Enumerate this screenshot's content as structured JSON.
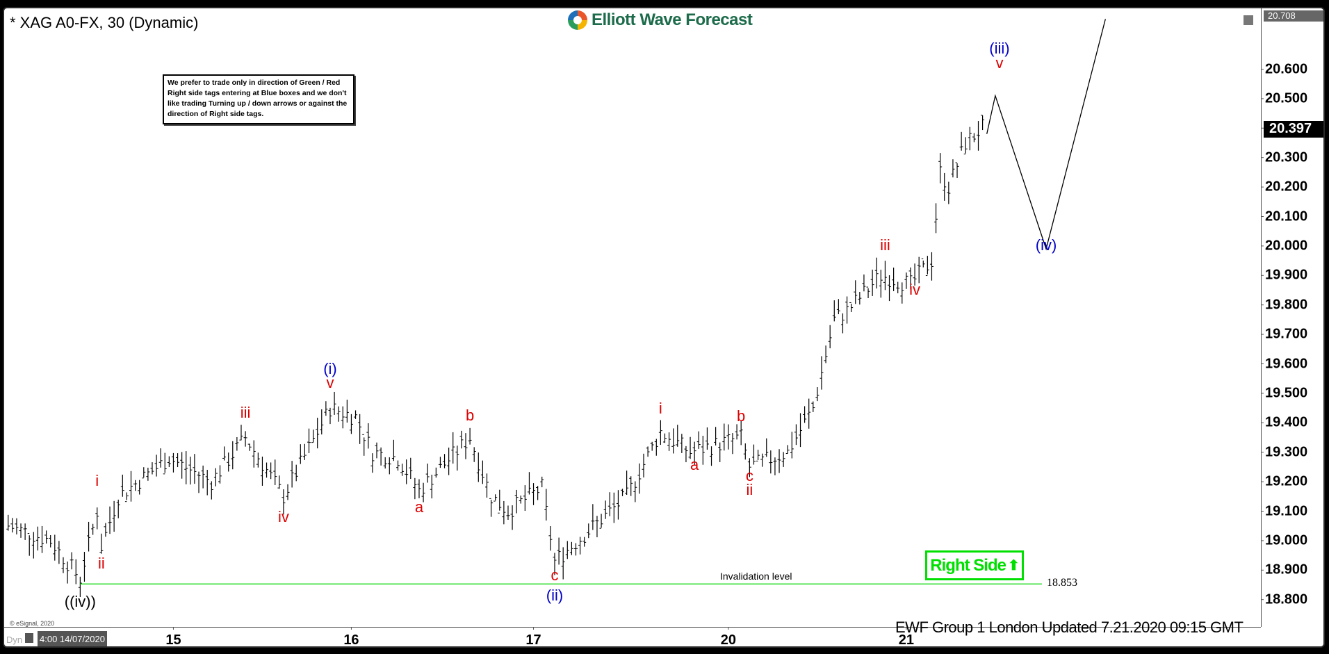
{
  "header": {
    "title": "* XAG A0-FX, 30 (Dynamic)",
    "logo_text": "Elliott Wave Forecast"
  },
  "note": "We prefer to trade only in direction of Green / Red Right side tags entering at Blue boxes and we don't like trading Turning up / down arrows or against the direction of Right side tags.",
  "footer": {
    "dyn": "Dyn",
    "date_tag": "4:00 14/07/2020",
    "copyright": "© eSignal, 2020",
    "updated": "EWF Group 1 London Updated 7.21.2020 09:15 GMT"
  },
  "right_side": {
    "label": "Right Side",
    "color": "#00e000"
  },
  "chart_data": {
    "type": "ohlc-bar",
    "symbol": "XAG A0-FX",
    "interval": "30",
    "ylim": [
      18.75,
      20.75
    ],
    "yticks": [
      "20.600",
      "20.500",
      "20.400",
      "20.300",
      "20.200",
      "20.100",
      "20.000",
      "19.900",
      "19.800",
      "19.700",
      "19.600",
      "19.500",
      "19.400",
      "19.300",
      "19.200",
      "19.100",
      "19.000",
      "18.900",
      "18.800"
    ],
    "ytick_values": [
      20.6,
      20.5,
      20.4,
      20.3,
      20.2,
      20.1,
      20.0,
      19.9,
      19.8,
      19.7,
      19.6,
      19.5,
      19.4,
      19.3,
      19.2,
      19.1,
      19.0,
      18.9,
      18.8
    ],
    "last_price": "20.397",
    "last_price_value": 20.397,
    "high_tag": "20.708",
    "high_tag_value": 20.708,
    "xticks": [
      {
        "label": "15",
        "bar": 39
      },
      {
        "label": "16",
        "bar": 81
      },
      {
        "label": "17",
        "bar": 124
      },
      {
        "label": "20",
        "bar": 170
      },
      {
        "label": "21",
        "bar": 212
      }
    ],
    "price_path": [
      [
        0,
        19.05
      ],
      [
        10,
        19.0
      ],
      [
        17,
        18.87
      ],
      [
        21,
        19.1
      ],
      [
        22,
        18.98
      ],
      [
        26,
        19.15
      ],
      [
        38,
        19.28
      ],
      [
        48,
        19.2
      ],
      [
        56,
        19.35
      ],
      [
        65,
        19.15
      ],
      [
        76,
        19.45
      ],
      [
        82,
        19.42
      ],
      [
        86,
        19.3
      ],
      [
        92,
        19.28
      ],
      [
        97,
        19.17
      ],
      [
        109,
        19.35
      ],
      [
        114,
        19.15
      ],
      [
        118,
        19.1
      ],
      [
        126,
        19.18
      ],
      [
        129,
        18.93
      ],
      [
        136,
        19.02
      ],
      [
        146,
        19.15
      ],
      [
        154,
        19.37
      ],
      [
        161,
        19.3
      ],
      [
        168,
        19.33
      ],
      [
        173,
        19.35
      ],
      [
        175,
        19.25
      ],
      [
        184,
        19.3
      ],
      [
        190,
        19.45
      ],
      [
        195,
        19.75
      ],
      [
        198,
        19.78
      ],
      [
        206,
        19.9
      ],
      [
        213,
        19.87
      ],
      [
        218,
        19.95
      ],
      [
        220,
        20.25
      ],
      [
        222,
        20.2
      ],
      [
        226,
        20.35
      ],
      [
        230,
        20.4
      ]
    ],
    "projection": [
      [
        231,
        20.38
      ],
      [
        233,
        20.51
      ],
      [
        245,
        19.99
      ],
      [
        259,
        20.77
      ]
    ],
    "invalidation": {
      "label": "Invalidation level",
      "price": "18.853",
      "value": 18.853,
      "from_bar": 17,
      "to_bar": 244,
      "color": "#33dd33"
    },
    "wave_labels": [
      {
        "text": "((iv))",
        "color": "#000000",
        "bar": 17,
        "price": 18.793
      },
      {
        "text": "i",
        "color": "#dd0000",
        "bar": 21,
        "price": 19.202
      },
      {
        "text": "ii",
        "color": "#dd0000",
        "bar": 22,
        "price": 18.923
      },
      {
        "text": "iii",
        "color": "#dd0000",
        "bar": 56,
        "price": 19.433
      },
      {
        "text": "iv",
        "color": "#dd0000",
        "bar": 65,
        "price": 19.081
      },
      {
        "text": "v",
        "color": "#dd0000",
        "bar": 76,
        "price": 19.534
      },
      {
        "text": "(i)",
        "color": "#0000cc",
        "bar": 76,
        "price": 19.583
      },
      {
        "text": "a",
        "color": "#dd0000",
        "bar": 97,
        "price": 19.113
      },
      {
        "text": "b",
        "color": "#dd0000",
        "bar": 109,
        "price": 19.424
      },
      {
        "text": "c",
        "color": "#dd0000",
        "bar": 129,
        "price": 18.882
      },
      {
        "text": "(ii)",
        "color": "#0000cc",
        "bar": 129,
        "price": 18.813
      },
      {
        "text": "i",
        "color": "#dd0000",
        "bar": 154,
        "price": 19.447
      },
      {
        "text": "a",
        "color": "#dd0000",
        "bar": 162,
        "price": 19.257
      },
      {
        "text": "b",
        "color": "#dd0000",
        "bar": 173,
        "price": 19.421
      },
      {
        "text": "c",
        "color": "#dd0000",
        "bar": 175,
        "price": 19.22
      },
      {
        "text": "ii",
        "color": "#dd0000",
        "bar": 175,
        "price": 19.171
      },
      {
        "text": "iii",
        "color": "#dd0000",
        "bar": 207,
        "price": 20.003
      },
      {
        "text": "iv",
        "color": "#dd0000",
        "bar": 214,
        "price": 19.851
      },
      {
        "text": "(iii)",
        "color": "#0000cc",
        "bar": 234,
        "price": 20.669
      },
      {
        "text": "v",
        "color": "#dd0000",
        "bar": 234,
        "price": 20.62
      },
      {
        "text": "(iv)",
        "color": "#0000cc",
        "bar": 245,
        "price": 20.003
      }
    ]
  }
}
